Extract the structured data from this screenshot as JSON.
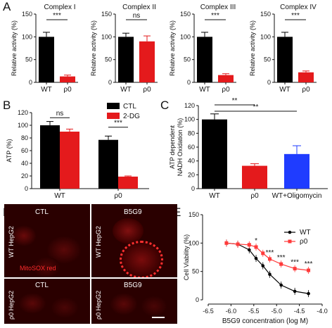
{
  "panel_letters": {
    "a": "A",
    "b": "B",
    "c": "C",
    "d": "D",
    "e": "E"
  },
  "colors": {
    "black": "#000000",
    "red": "#e41a1c",
    "blue": "#1f3cff",
    "wt_line": "#000000",
    "rho_line": "#ff3a3a"
  },
  "chart_data": [
    {
      "id": "A1",
      "type": "bar",
      "title": "Complex I",
      "ylabel": "Relative activity (%)",
      "categories": [
        "WT",
        "ρ0"
      ],
      "values": [
        100,
        13
      ],
      "errors": [
        10,
        3
      ],
      "bar_colors": [
        "#000000",
        "#e41a1c"
      ],
      "ylim": [
        0,
        150
      ],
      "yticks": [
        "0",
        "50",
        "100",
        "150"
      ],
      "significance": "***"
    },
    {
      "id": "A2",
      "type": "bar",
      "title": "Complex II",
      "ylabel": "Relative activity (%)",
      "categories": [
        "WT",
        "ρ0"
      ],
      "values": [
        100,
        90
      ],
      "errors": [
        8,
        12
      ],
      "bar_colors": [
        "#000000",
        "#e41a1c"
      ],
      "ylim": [
        0,
        150
      ],
      "yticks": [
        "0",
        "50",
        "100",
        "150"
      ],
      "significance": "ns"
    },
    {
      "id": "A3",
      "type": "bar",
      "title": "Complex III",
      "ylabel": "Relative activity (%)",
      "categories": [
        "WT",
        "ρ0"
      ],
      "values": [
        100,
        16
      ],
      "errors": [
        10,
        3
      ],
      "bar_colors": [
        "#000000",
        "#e41a1c"
      ],
      "ylim": [
        0,
        150
      ],
      "yticks": [
        "0",
        "50",
        "100",
        "150"
      ],
      "significance": "***"
    },
    {
      "id": "A4",
      "type": "bar",
      "title": "Complex IV",
      "ylabel": "Relative activity (%)",
      "categories": [
        "WT",
        "ρ0"
      ],
      "values": [
        100,
        22
      ],
      "errors": [
        10,
        3
      ],
      "bar_colors": [
        "#000000",
        "#e41a1c"
      ],
      "ylim": [
        0,
        150
      ],
      "yticks": [
        "0",
        "50",
        "100",
        "150"
      ],
      "significance": "***"
    },
    {
      "id": "B",
      "type": "bar",
      "ylabel": "ATP (%)",
      "categories": [
        "WT",
        "ρ0"
      ],
      "series": [
        {
          "name": "CTL",
          "values": [
            100,
            77
          ],
          "errors": [
            6,
            6
          ],
          "color": "#000000"
        },
        {
          "name": "2-DG",
          "values": [
            90,
            19
          ],
          "errors": [
            4,
            1
          ],
          "color": "#e41a1c"
        }
      ],
      "ylim": [
        0,
        120
      ],
      "yticks": [
        "0",
        "20",
        "40",
        "60",
        "80",
        "100",
        "120"
      ],
      "significance": [
        "ns",
        "***"
      ],
      "legend": "top-right"
    },
    {
      "id": "C",
      "type": "bar",
      "ylabel": "ATP dependent NADH Oxidation (%)",
      "categories": [
        "WT",
        "ρ0",
        "WT+Oligomycin"
      ],
      "values": [
        100,
        33,
        50
      ],
      "errors": [
        8,
        3,
        12
      ],
      "bar_colors": [
        "#000000",
        "#e41a1c",
        "#1f3cff"
      ],
      "ylim": [
        0,
        120
      ],
      "yticks": [
        "0",
        "20",
        "40",
        "60",
        "80",
        "100",
        "120"
      ],
      "significance": [
        "**",
        "**"
      ]
    },
    {
      "id": "E",
      "type": "line",
      "xlabel": "B5G9 concentration (log M)",
      "ylabel": "Cell Viability (%)",
      "xlim": [
        -6.5,
        -4.0
      ],
      "ylim": [
        0,
        150
      ],
      "xticks": [
        "-6.5",
        "-6.0",
        "-5.5",
        "-5.0",
        "-4.5",
        "-4.0"
      ],
      "yticks": [
        "0",
        "50",
        "100",
        "150"
      ],
      "series": [
        {
          "name": "WT",
          "x": [
            -6.1,
            -5.85,
            -5.6,
            -5.45,
            -5.3,
            -5.15,
            -4.9,
            -4.6,
            -4.3
          ],
          "y": [
            100,
            98,
            88,
            73,
            60,
            45,
            26,
            15,
            11
          ],
          "color": "#000000",
          "marker": "circle"
        },
        {
          "name": "ρ0",
          "x": [
            -6.1,
            -5.85,
            -5.6,
            -5.45,
            -5.3,
            -5.15,
            -4.9,
            -4.6,
            -4.3
          ],
          "y": [
            100,
            98,
            97,
            93,
            82,
            72,
            63,
            55,
            52
          ],
          "color": "#ff3a3a",
          "marker": "square"
        }
      ],
      "annotations": [
        "*",
        "***",
        "***",
        "***",
        "***"
      ],
      "legend": "top-right"
    }
  ],
  "micrograph": {
    "col_labels": [
      "CTL",
      "B5G9"
    ],
    "row_labels": [
      "WT HepG2",
      "ρ0 HepG2"
    ],
    "stain_label": "MitoSOX red"
  }
}
